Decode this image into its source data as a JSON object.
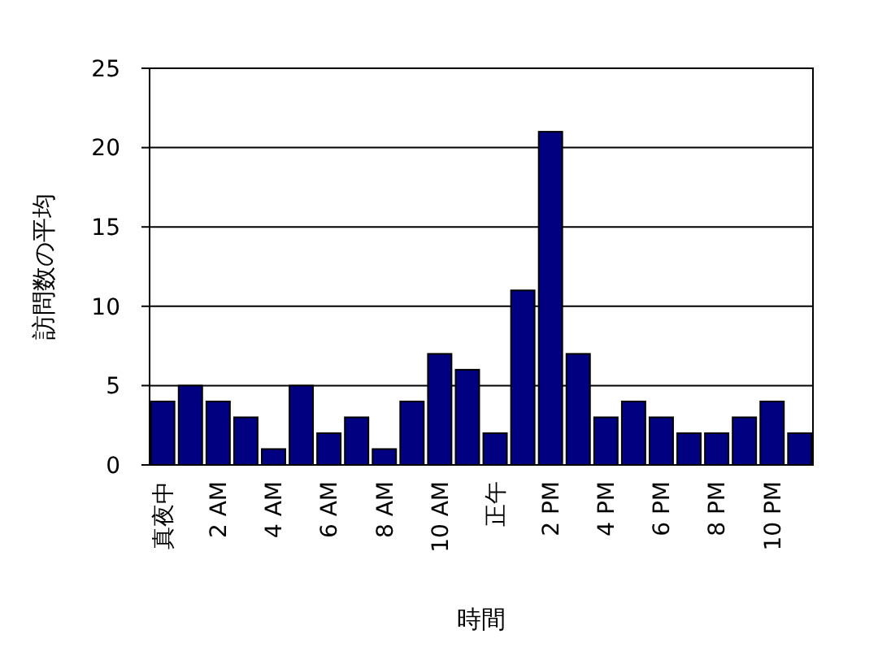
{
  "chart_data": {
    "type": "bar",
    "xlabel": "時間",
    "ylabel": "訪問数の平均",
    "categories": [
      "真夜中",
      null,
      "2 AM",
      null,
      "4 AM",
      null,
      "6 AM",
      null,
      "8 AM",
      null,
      "10 AM",
      null,
      "正午",
      null,
      "2 PM",
      null,
      "4 PM",
      null,
      "6 PM",
      null,
      "8 PM",
      null,
      "10 PM",
      null
    ],
    "values": [
      4,
      5,
      4,
      3,
      1,
      5,
      2,
      3,
      1,
      4,
      7,
      6,
      2,
      11,
      21,
      7,
      3,
      4,
      3,
      2,
      2,
      3,
      4,
      2
    ],
    "color": "#000080",
    "ylim": [
      0,
      25
    ],
    "yticks": [
      0,
      5,
      10,
      15,
      20,
      25
    ],
    "grid": "y"
  }
}
